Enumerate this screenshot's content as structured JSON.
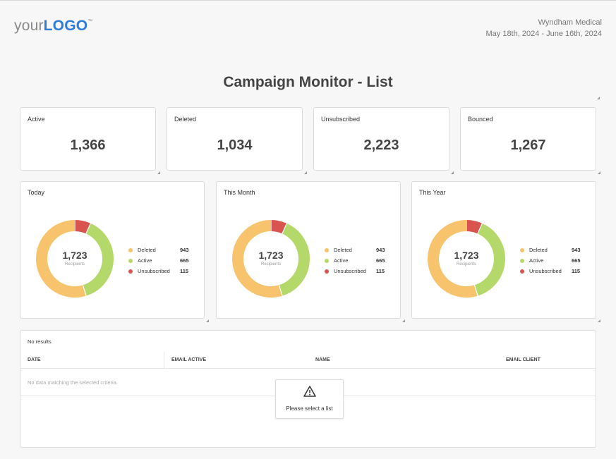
{
  "header": {
    "logo_prefix": "your",
    "logo_brand": "LOGO",
    "logo_tm": "™",
    "client_name": "Wyndham Medical",
    "date_range": "May 18th, 2024 - June 16th, 2024"
  },
  "page_title": "Campaign Monitor - List",
  "stats": [
    {
      "label": "Active",
      "value": "1,366"
    },
    {
      "label": "Deleted",
      "value": "1,034"
    },
    {
      "label": "Unsubscribed",
      "value": "2,223"
    },
    {
      "label": "Bounced",
      "value": "1,267"
    }
  ],
  "donuts": [
    {
      "title": "Today",
      "total": "1,723",
      "sub": "Recipients",
      "legend": [
        {
          "name": "Deleted",
          "value": "943",
          "color": "#f8c36d"
        },
        {
          "name": "Active",
          "value": "665",
          "color": "#b5d86a"
        },
        {
          "name": "Unsubscribed",
          "value": "115",
          "color": "#d9534f"
        }
      ]
    },
    {
      "title": "This Month",
      "total": "1,723",
      "sub": "Recipients",
      "legend": [
        {
          "name": "Deleted",
          "value": "943",
          "color": "#f8c36d"
        },
        {
          "name": "Active",
          "value": "665",
          "color": "#b5d86a"
        },
        {
          "name": "Unsubscribed",
          "value": "115",
          "color": "#d9534f"
        }
      ]
    },
    {
      "title": "This Year",
      "total": "1,723",
      "sub": "Recipients",
      "legend": [
        {
          "name": "Deleted",
          "value": "943",
          "color": "#f8c36d"
        },
        {
          "name": "Active",
          "value": "665",
          "color": "#b5d86a"
        },
        {
          "name": "Unsubscribed",
          "value": "115",
          "color": "#d9534f"
        }
      ]
    }
  ],
  "table": {
    "status": "No results",
    "columns": [
      "DATE",
      "EMAIL ACTIVE",
      "NAME",
      "EMAIL CLIENT"
    ],
    "empty_message": "No data matching the selected criteria.",
    "notice": "Please select a list"
  },
  "icons": {
    "warning": "warning-icon",
    "resize": "resize-handle-icon"
  },
  "colors": {
    "brand": "#2f7dd8",
    "deleted": "#f8c36d",
    "active": "#b5d86a",
    "unsubscribed": "#d9534f"
  }
}
